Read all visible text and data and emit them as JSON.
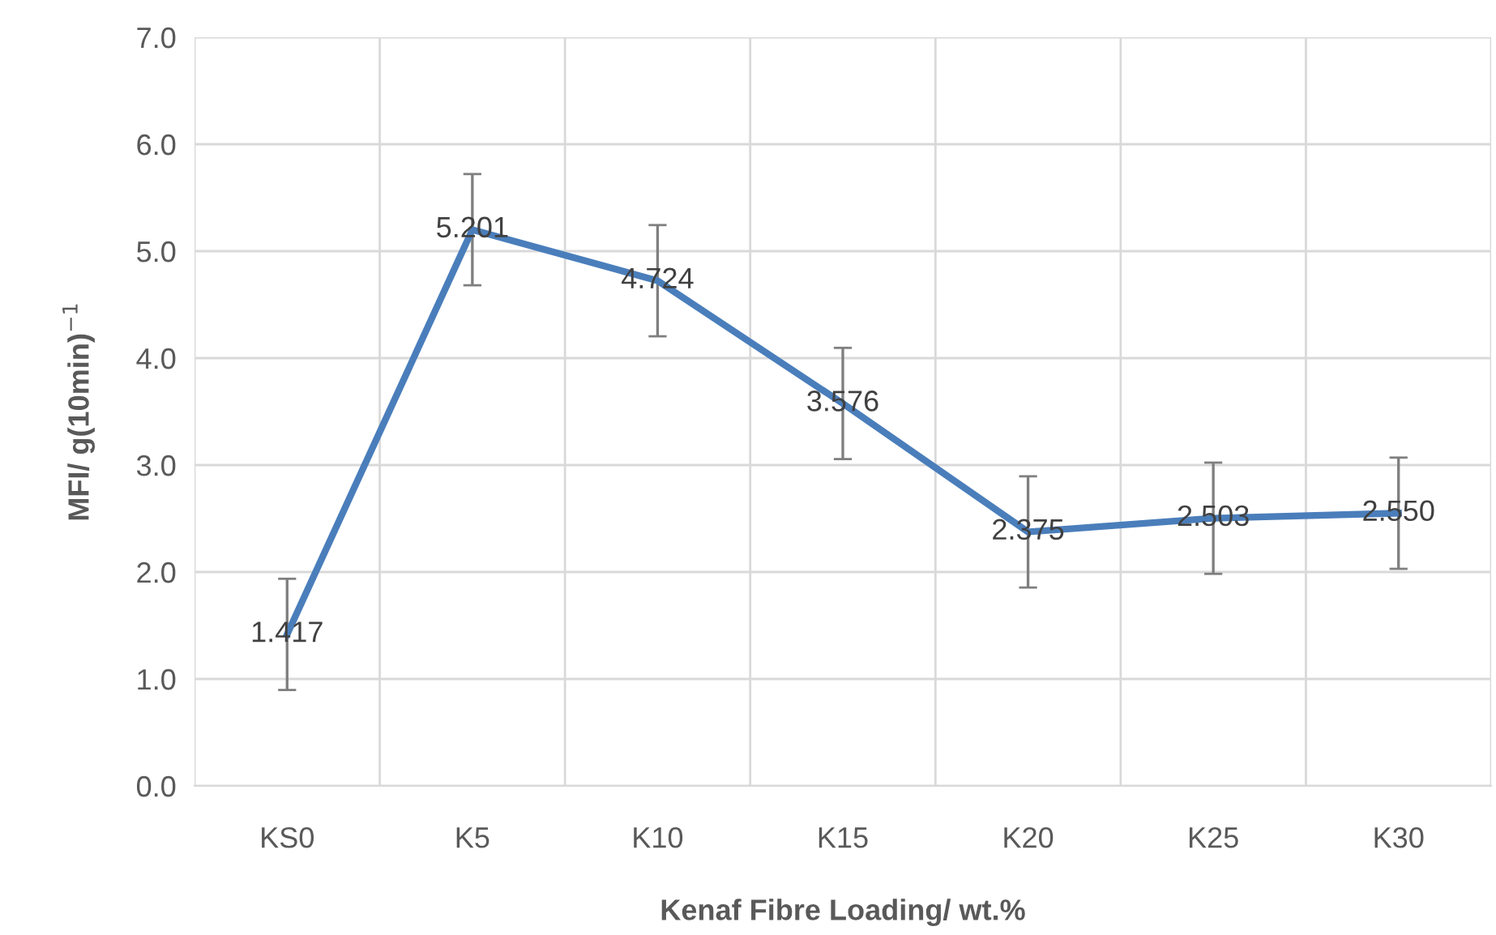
{
  "chart_data": {
    "type": "line",
    "xlabel": "Kenaf Fibre Loading/ wt.%",
    "ylabel": "MFI/ g(10min)$^{−1}$",
    "categories": [
      "KS0",
      "K5",
      "K10",
      "K15",
      "K20",
      "K25",
      "K30"
    ],
    "series": [
      {
        "color": "#4a7ebb",
        "values": [
          1.417,
          5.201,
          4.724,
          3.576,
          2.375,
          2.503,
          2.55
        ],
        "value_labels": [
          "1.417",
          "5.201",
          "4.724",
          "3.576",
          "2.375",
          "2.503",
          "2.550"
        ],
        "errors": [
          0.52,
          0.52,
          0.52,
          0.52,
          0.52,
          0.52,
          0.52
        ]
      }
    ],
    "ylim": [
      0,
      7
    ],
    "yticks": [
      {
        "value": 0,
        "label": "0.0"
      },
      {
        "value": 1,
        "label": "1.0"
      },
      {
        "value": 2,
        "label": "2.0"
      },
      {
        "value": 3,
        "label": "3.0"
      },
      {
        "value": 4,
        "label": "4.0"
      },
      {
        "value": 5,
        "label": "5.0"
      },
      {
        "value": 6,
        "label": "6.0"
      },
      {
        "value": 7,
        "label": "7.0"
      }
    ],
    "grid": true,
    "marker": "none",
    "line_style": "solid"
  }
}
